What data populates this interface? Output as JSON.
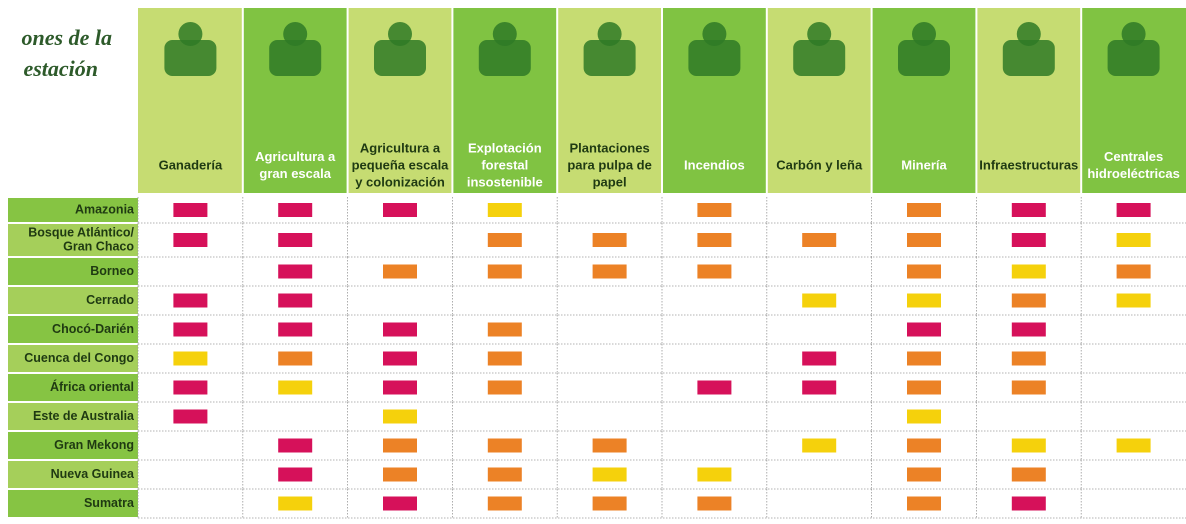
{
  "title": [
    "ones de la",
    "estación"
  ],
  "columns": [
    {
      "label": [
        "Ganadería"
      ]
    },
    {
      "label": [
        "Agricultura a",
        "gran escala"
      ]
    },
    {
      "label": [
        "Agricultura a",
        "pequeña escala",
        "y colonización"
      ]
    },
    {
      "label": [
        "Explotación",
        "forestal",
        "insostenible"
      ]
    },
    {
      "label": [
        "Plantaciones",
        "para pulpa de",
        "papel"
      ]
    },
    {
      "label": [
        "Incendios"
      ]
    },
    {
      "label": [
        "Carbón y leña"
      ]
    },
    {
      "label": [
        "Minería"
      ]
    },
    {
      "label": [
        "Infraestructuras"
      ]
    },
    {
      "label": [
        "Centrales",
        "hidroeléctricas"
      ]
    }
  ],
  "rows": [
    {
      "label": [
        "Amazonia"
      ],
      "cells": [
        "#d6115a",
        "#d6115a",
        "#d6115a",
        "#f5d10c",
        null,
        "#ec8226",
        null,
        "#ec8226",
        "#d6115a",
        "#d6115a"
      ]
    },
    {
      "label": [
        "Bosque Atlántico/",
        "Gran Chaco"
      ],
      "cells": [
        "#d6115a",
        "#d6115a",
        null,
        "#ec8226",
        "#ec8226",
        "#ec8226",
        "#ec8226",
        "#ec8226",
        "#d6115a",
        "#f5d10c"
      ]
    },
    {
      "label": [
        "Borneo"
      ],
      "cells": [
        null,
        "#d6115a",
        "#ec8226",
        "#ec8226",
        "#ec8226",
        "#ec8226",
        null,
        "#ec8226",
        "#f5d10c",
        "#ec8226"
      ]
    },
    {
      "label": [
        "Cerrado"
      ],
      "cells": [
        "#d6115a",
        "#d6115a",
        null,
        null,
        null,
        null,
        "#f5d10c",
        "#f5d10c",
        "#ec8226",
        "#f5d10c"
      ]
    },
    {
      "label": [
        "Chocó-Darién"
      ],
      "cells": [
        "#d6115a",
        "#d6115a",
        "#d6115a",
        "#ec8226",
        null,
        null,
        null,
        "#d6115a",
        "#d6115a",
        null
      ]
    },
    {
      "label": [
        "Cuenca del Congo"
      ],
      "cells": [
        "#f5d10c",
        "#ec8226",
        "#d6115a",
        "#ec8226",
        null,
        null,
        "#d6115a",
        "#ec8226",
        "#ec8226",
        null
      ]
    },
    {
      "label": [
        "África oriental"
      ],
      "cells": [
        "#d6115a",
        "#f5d10c",
        "#d6115a",
        "#ec8226",
        null,
        "#d6115a",
        "#d6115a",
        "#ec8226",
        "#ec8226",
        null
      ]
    },
    {
      "label": [
        "Este de Australia"
      ],
      "cells": [
        "#d6115a",
        null,
        "#f5d10c",
        null,
        null,
        null,
        null,
        "#f5d10c",
        null,
        null
      ]
    },
    {
      "label": [
        "Gran Mekong"
      ],
      "cells": [
        null,
        "#d6115a",
        "#ec8226",
        "#ec8226",
        "#ec8226",
        null,
        "#f5d10c",
        "#ec8226",
        "#f5d10c",
        "#f5d10c"
      ]
    },
    {
      "label": [
        "Nueva Guinea"
      ],
      "cells": [
        null,
        "#d6115a",
        "#ec8226",
        "#ec8226",
        "#f5d10c",
        "#f5d10c",
        null,
        "#ec8226",
        "#ec8226",
        null
      ]
    },
    {
      "label": [
        "Sumatra"
      ],
      "cells": [
        null,
        "#f5d10c",
        "#d6115a",
        "#ec8226",
        "#ec8226",
        "#ec8226",
        null,
        "#ec8226",
        "#d6115a",
        null
      ]
    }
  ]
}
